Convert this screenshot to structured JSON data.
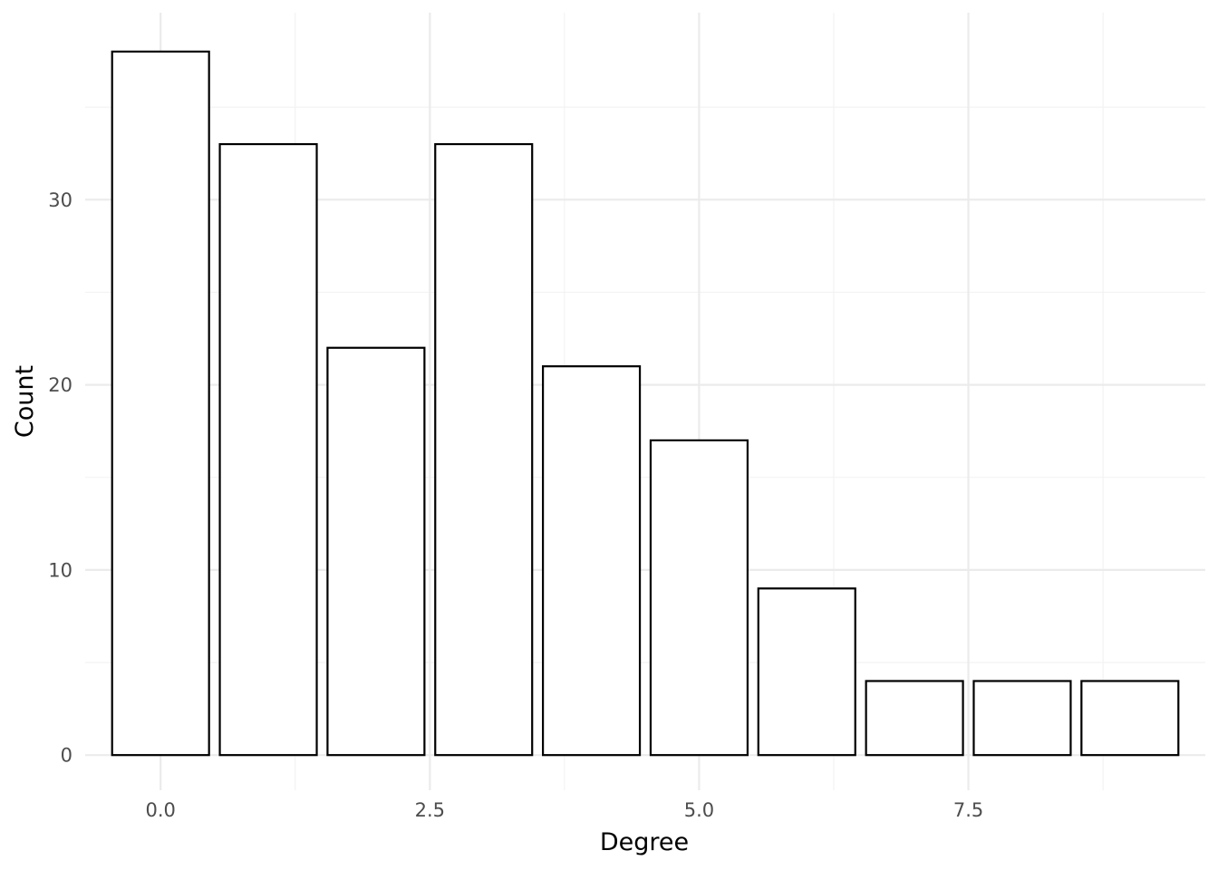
{
  "chart_data": {
    "type": "bar",
    "title": "",
    "xlabel": "Degree",
    "ylabel": "Count",
    "x": [
      0,
      1,
      2,
      3,
      4,
      5,
      6,
      7,
      8,
      9
    ],
    "values": [
      38,
      33,
      22,
      33,
      21,
      17,
      9,
      4,
      4,
      4
    ],
    "xlim": [
      -0.7,
      9.7
    ],
    "ylim": [
      -1.9,
      40.1
    ],
    "x_ticks": [
      0,
      2.5,
      5,
      7.5
    ],
    "x_tick_labels": [
      "0.0",
      "2.5",
      "5.0",
      "7.5"
    ],
    "y_ticks": [
      0,
      10,
      20,
      30
    ],
    "y_tick_labels": [
      "0",
      "10",
      "20",
      "30"
    ],
    "grid": true,
    "legend": "none",
    "colors": {
      "bar_fill": "#ffffff",
      "bar_stroke": "#000000",
      "grid_major": "#ebebeb",
      "grid_minor": "#f2f2f2",
      "tick_text": "#4d4d4d",
      "title_text": "#000000"
    }
  }
}
